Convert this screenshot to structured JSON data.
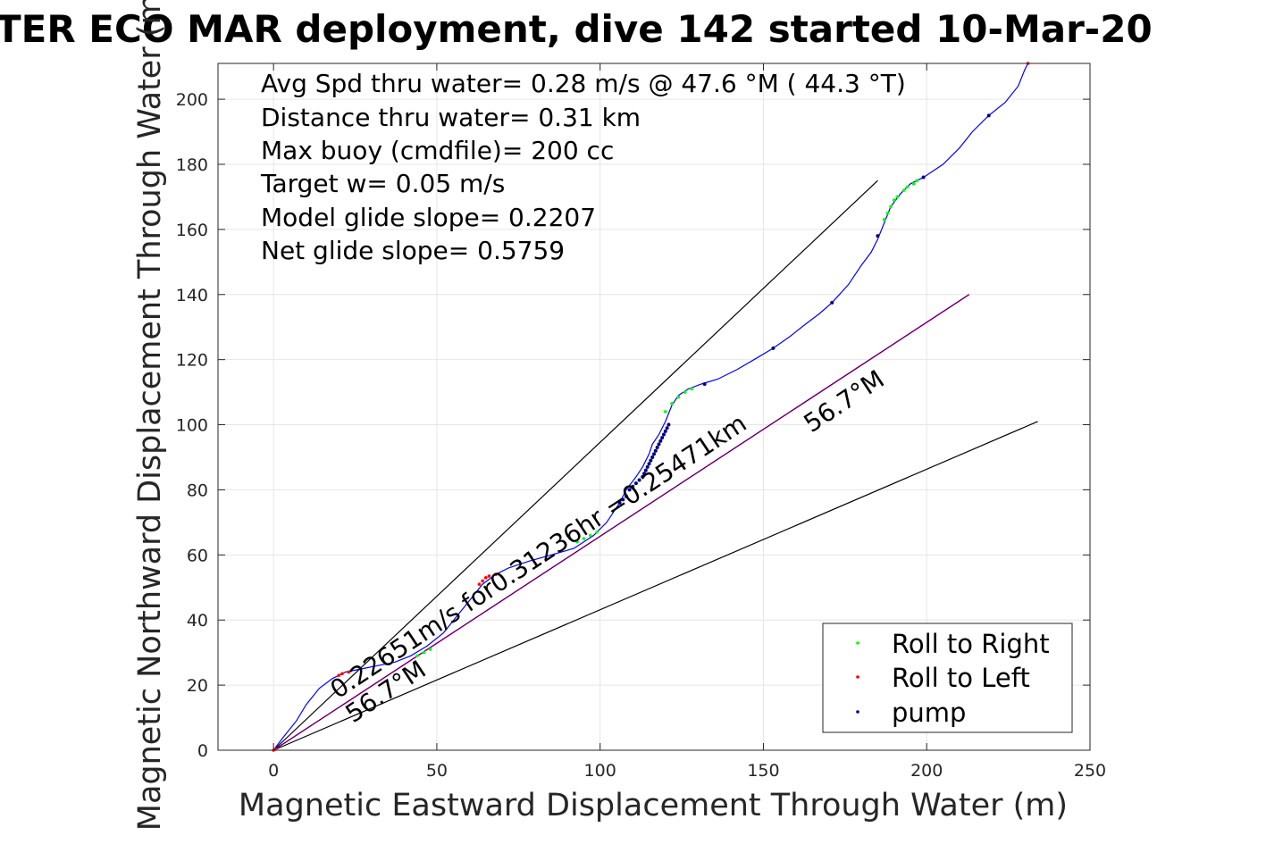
{
  "title": "TER ECO MAR deployment, dive 142 started 10-Mar-20",
  "info_lines": [
    "Avg Spd thru water=  0.28 m/s @  47.6 °M ( 44.3 °T)",
    "Distance thru water=  0.31 km",
    "Max buoy (cmdfile)= 200 cc",
    "Target w= 0.05 m/s",
    "Model glide slope= 0.2207",
    "Net glide slope= 0.5759"
  ],
  "annotations": {
    "current": "0.22651m/s for0.31236hr =0.25471km",
    "heading_top": "56.7°M",
    "heading_bottom": "56.7°M"
  },
  "colors": {
    "track": "#0000ff",
    "roll_right": "#00ff00",
    "roll_left": "#ff0000",
    "pump": "#000080",
    "current_line": "#cc00cc",
    "reference_lines": "#000000",
    "grid": "#e6e6e6"
  },
  "chart_data": {
    "type": "line",
    "xlabel": "Magnetic Eastward Displacement Through Water (m)",
    "ylabel": "Magnetic Northward Displacement Through Water (m)",
    "xlim": [
      -17,
      250
    ],
    "ylim": [
      0,
      211
    ],
    "xticks": [
      0,
      50,
      100,
      150,
      200,
      250
    ],
    "yticks": [
      0,
      20,
      40,
      60,
      80,
      100,
      120,
      140,
      160,
      180,
      200
    ],
    "grid": true,
    "legend_position": "bottom-right",
    "legend": [
      {
        "label": "Roll to Right",
        "key": "roll_right"
      },
      {
        "label": "Roll to Left",
        "key": "roll_left"
      },
      {
        "label": "pump",
        "key": "pump"
      }
    ],
    "track": [
      [
        0,
        0
      ],
      [
        3,
        4
      ],
      [
        7,
        9
      ],
      [
        10,
        14
      ],
      [
        14,
        19
      ],
      [
        18,
        22
      ],
      [
        22,
        24
      ],
      [
        27,
        25
      ],
      [
        32,
        26
      ],
      [
        37,
        27
      ],
      [
        42,
        29
      ],
      [
        47,
        32
      ],
      [
        52,
        36
      ],
      [
        56,
        41
      ],
      [
        60,
        46
      ],
      [
        64,
        51
      ],
      [
        68,
        54
      ],
      [
        72,
        56
      ],
      [
        78,
        58
      ],
      [
        85,
        60
      ],
      [
        92,
        62
      ],
      [
        98,
        66
      ],
      [
        102,
        70
      ],
      [
        106,
        76
      ],
      [
        108,
        80
      ],
      [
        111,
        84
      ],
      [
        113,
        87
      ],
      [
        115,
        91
      ],
      [
        116,
        94
      ],
      [
        118,
        97
      ],
      [
        120,
        101
      ],
      [
        122,
        106
      ],
      [
        124,
        109
      ],
      [
        127,
        111
      ],
      [
        131,
        112.5
      ],
      [
        136,
        114
      ],
      [
        142,
        117
      ],
      [
        148,
        120.5
      ],
      [
        153,
        123.5
      ],
      [
        158,
        127
      ],
      [
        163,
        131
      ],
      [
        167,
        134
      ],
      [
        171,
        137.5
      ],
      [
        176,
        143
      ],
      [
        180,
        149
      ],
      [
        183,
        153
      ],
      [
        185,
        157
      ],
      [
        187,
        162
      ],
      [
        189,
        167
      ],
      [
        192,
        171
      ],
      [
        195,
        174
      ],
      [
        199,
        176
      ],
      [
        205,
        180
      ],
      [
        210,
        185
      ],
      [
        214,
        190
      ],
      [
        219,
        195
      ],
      [
        224,
        199
      ],
      [
        228,
        204
      ],
      [
        230,
        209
      ],
      [
        231,
        211
      ]
    ],
    "roll_right": [
      [
        44,
        29
      ],
      [
        46,
        30
      ],
      [
        48,
        31
      ],
      [
        93,
        64
      ],
      [
        95,
        65
      ],
      [
        97,
        66
      ],
      [
        99,
        67
      ],
      [
        120,
        104
      ],
      [
        122,
        106.5
      ],
      [
        124,
        108.5
      ],
      [
        126,
        110
      ],
      [
        128,
        111
      ],
      [
        187,
        163
      ],
      [
        188,
        165
      ],
      [
        189,
        167
      ],
      [
        190,
        169
      ],
      [
        191,
        170
      ],
      [
        193,
        172
      ],
      [
        194,
        173
      ],
      [
        196,
        174
      ],
      [
        197,
        175
      ]
    ],
    "roll_left": [
      [
        0,
        0
      ],
      [
        0.5,
        0.3
      ],
      [
        20,
        23
      ],
      [
        21,
        23.5
      ],
      [
        23,
        24
      ],
      [
        63,
        51
      ],
      [
        64,
        52
      ],
      [
        65,
        53
      ],
      [
        66,
        53.5
      ],
      [
        68,
        54
      ],
      [
        231,
        211
      ]
    ],
    "pump": [
      [
        106,
        76
      ],
      [
        107,
        77
      ],
      [
        108,
        78
      ],
      [
        109,
        80
      ],
      [
        110,
        81
      ],
      [
        111,
        82
      ],
      [
        112,
        83
      ],
      [
        113,
        84
      ],
      [
        113.5,
        85
      ],
      [
        114,
        86
      ],
      [
        114.5,
        87
      ],
      [
        115,
        88
      ],
      [
        115.5,
        89
      ],
      [
        116,
        90
      ],
      [
        116.5,
        91
      ],
      [
        117,
        92
      ],
      [
        117.5,
        93
      ],
      [
        118,
        94
      ],
      [
        118.5,
        95
      ],
      [
        119,
        96
      ],
      [
        119.5,
        97
      ],
      [
        120,
        98
      ],
      [
        120.5,
        99
      ],
      [
        121,
        100
      ],
      [
        132,
        112.5
      ],
      [
        153,
        123.5
      ],
      [
        171,
        137.5
      ],
      [
        185,
        158
      ],
      [
        199,
        176
      ],
      [
        219,
        195
      ]
    ],
    "current_line": [
      [
        0,
        0
      ],
      [
        213,
        140
      ]
    ],
    "reference_lines": [
      [
        [
          0,
          0
        ],
        [
          185,
          175
        ]
      ],
      [
        [
          0,
          0
        ],
        [
          234,
          101
        ]
      ]
    ]
  }
}
